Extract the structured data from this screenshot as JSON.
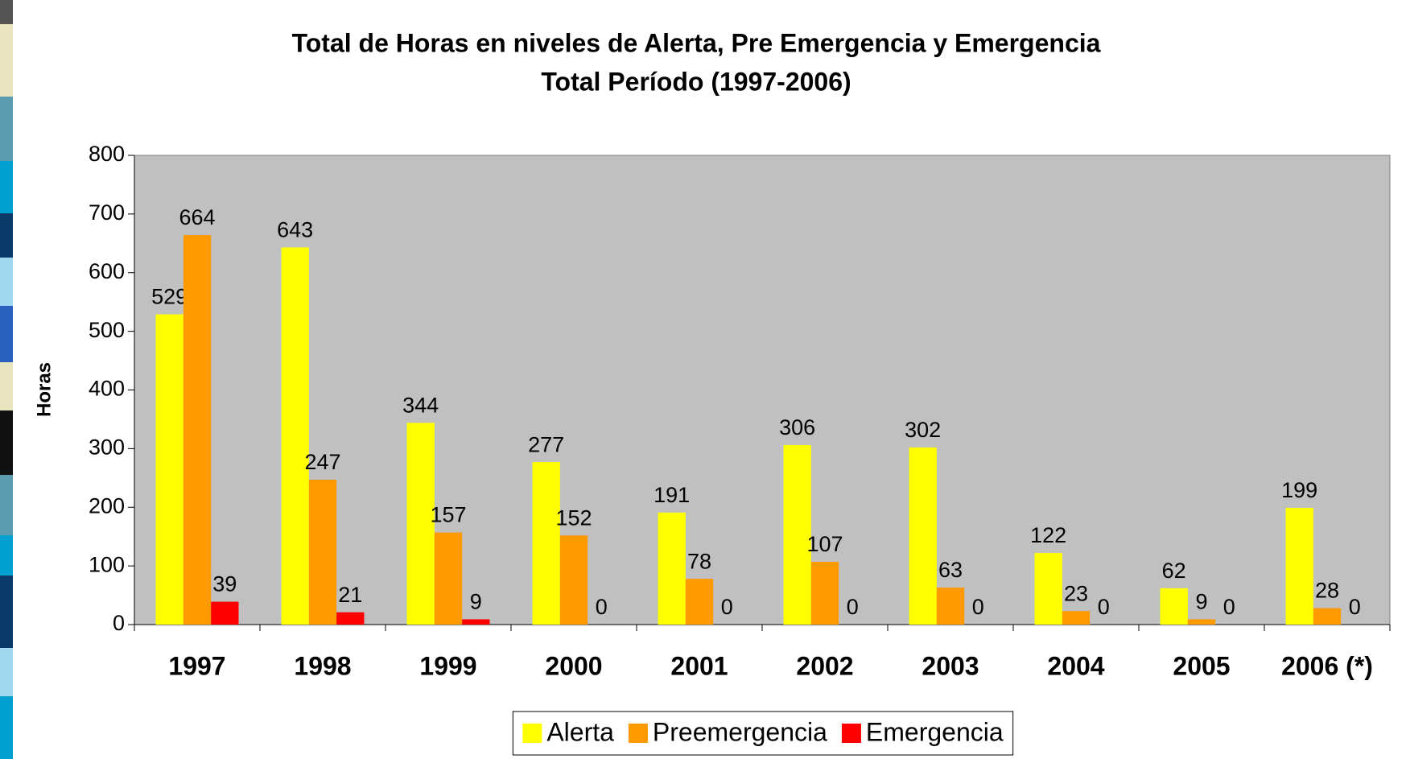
{
  "chart_data": {
    "type": "bar",
    "title": "Total de Horas en niveles de Alerta, Pre Emergencia y Emergencia",
    "subtitle": "Total Período (1997-2006)",
    "y_label": "Horas",
    "categories": [
      "1997",
      "1998",
      "1999",
      "2000",
      "2001",
      "2002",
      "2003",
      "2004",
      "2005",
      "2006 (*)"
    ],
    "series": [
      {
        "name": "Alerta",
        "color": "#FFFF00",
        "values": [
          529,
          643,
          344,
          277,
          191,
          306,
          302,
          122,
          62,
          199
        ]
      },
      {
        "name": "Preemergencia",
        "color": "#FF9900",
        "values": [
          664,
          247,
          157,
          152,
          78,
          107,
          63,
          23,
          9,
          28
        ]
      },
      {
        "name": "Emergencia",
        "color": "#FF0000",
        "values": [
          39,
          21,
          9,
          0,
          0,
          0,
          0,
          0,
          0,
          0
        ]
      }
    ],
    "ylim": [
      0,
      800
    ],
    "yticks": [
      0,
      100,
      200,
      300,
      400,
      500,
      600,
      700,
      800
    ],
    "grid": false,
    "plot_background": "#C0C0C0",
    "legend": "bottom"
  }
}
